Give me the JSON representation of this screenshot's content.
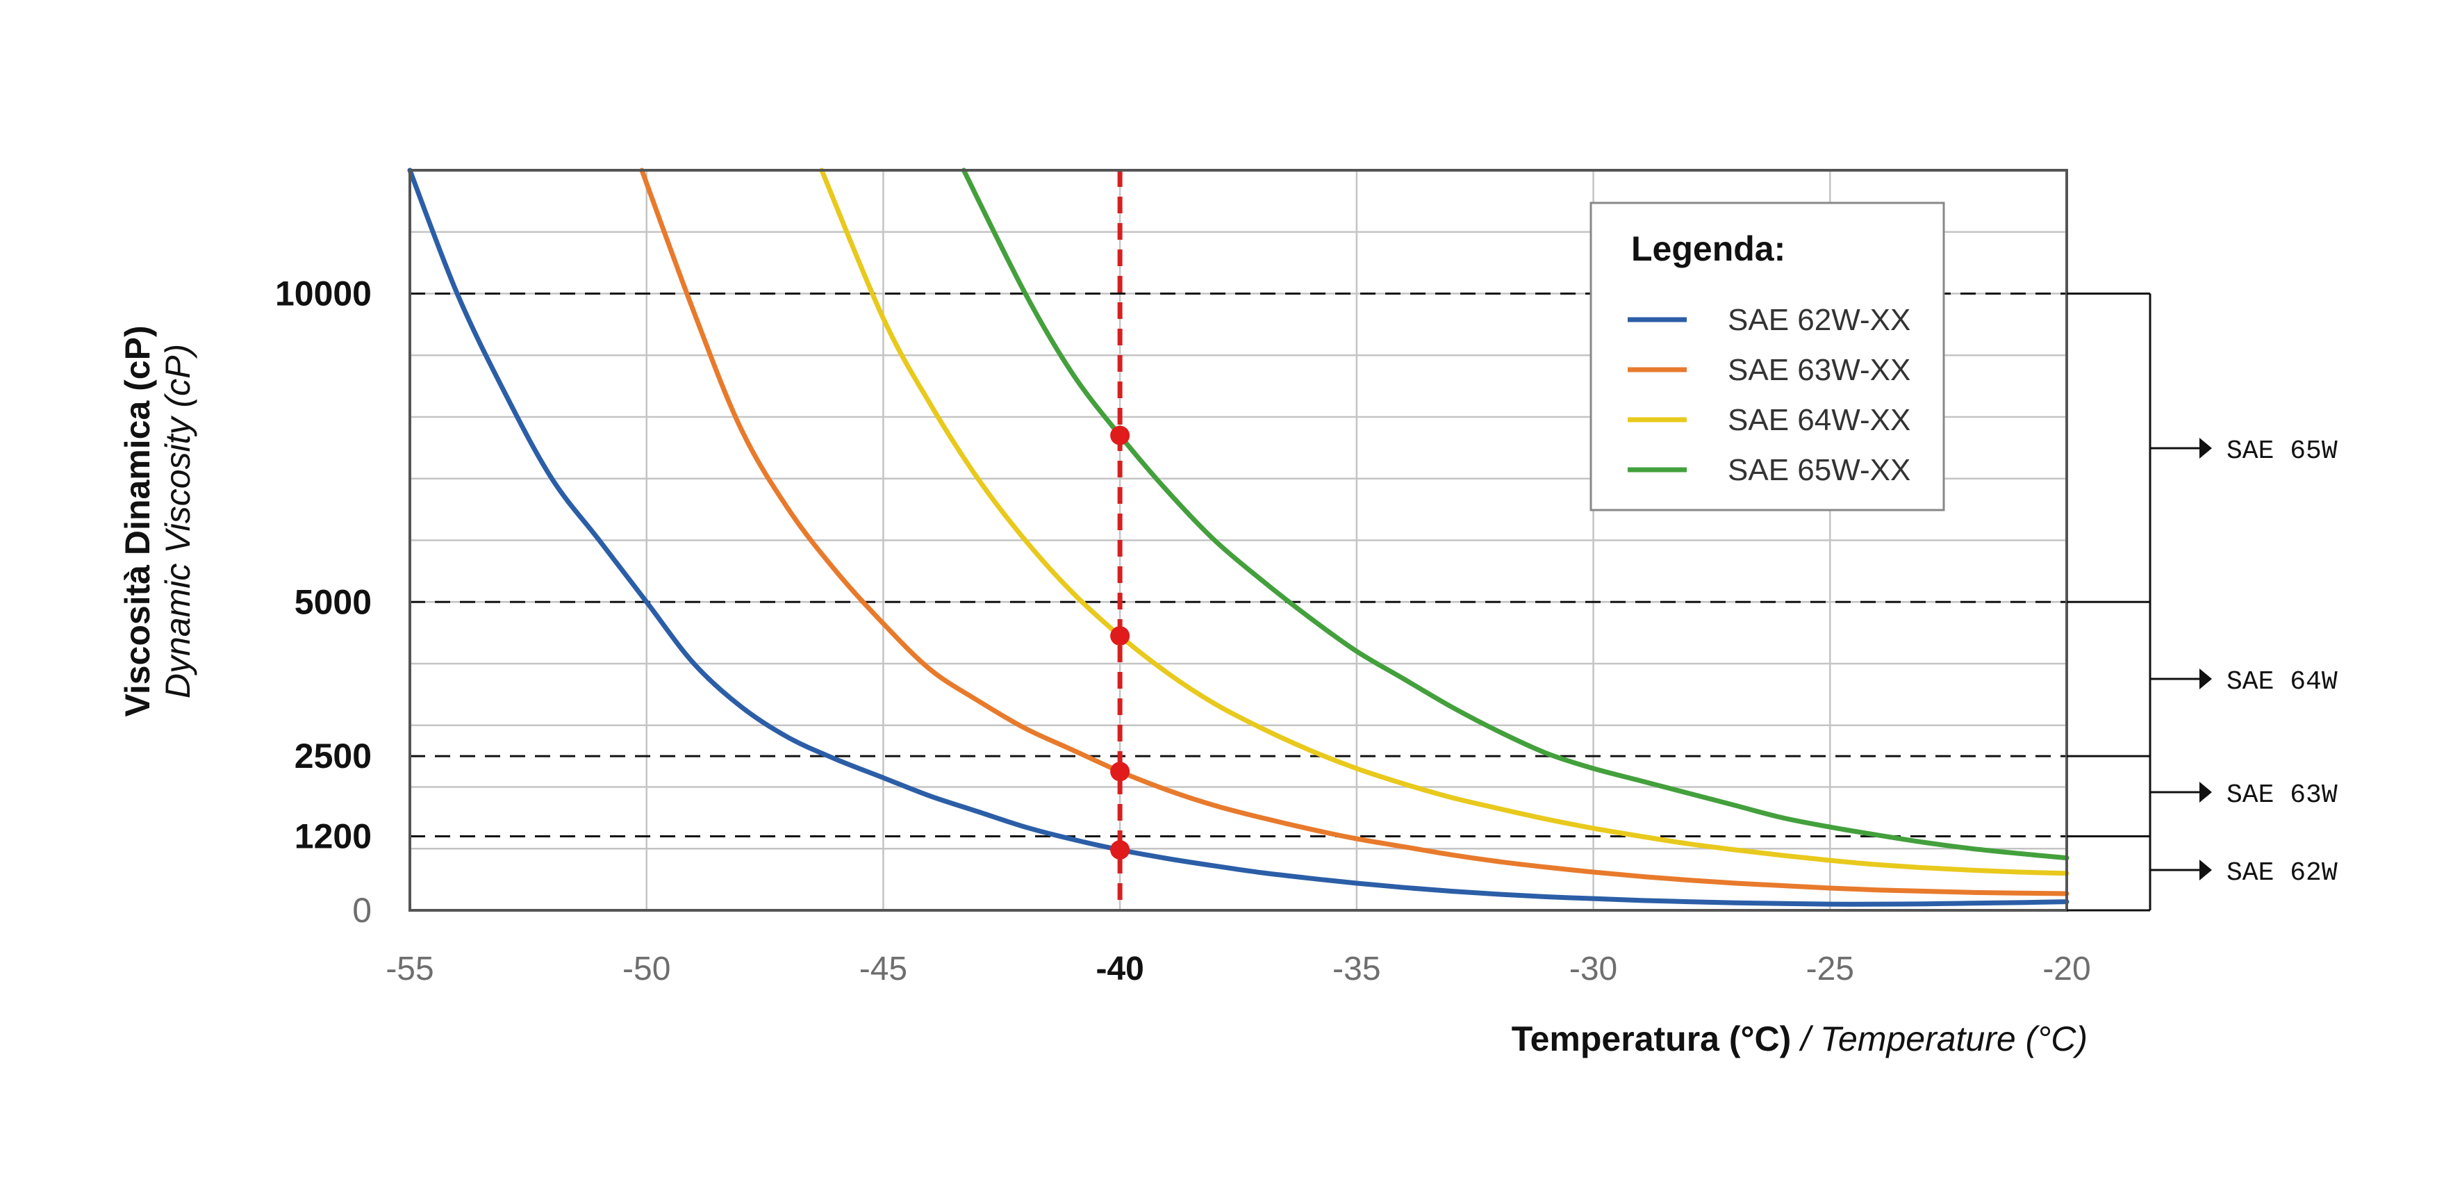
{
  "chart_data": {
    "type": "line",
    "xlabel": "Temperatura (°C)",
    "xlabel_en": "/ Temperature (°C)",
    "ylabel": "Viscosità Dinamica (cP)",
    "ylabel_en": "Dynamic Viscosity (cP)",
    "xlim": [
      -55,
      -20
    ],
    "x_ticks": [
      "-55",
      "-50",
      "-45",
      "-40",
      "-35",
      "-30",
      "-25",
      "-20"
    ],
    "x_ticks_values": [
      -55,
      -50,
      -45,
      -40,
      -35,
      -30,
      -25,
      -20
    ],
    "x_tick_bold": "-40",
    "y_ticks": [
      {
        "label": "10000",
        "value": 10000
      },
      {
        "label": "5000",
        "value": 5000
      },
      {
        "label": "2500",
        "value": 2500
      },
      {
        "label": "1200",
        "value": 1200
      },
      {
        "label": "0",
        "value": 0
      }
    ],
    "ylim": [
      0,
      12000
    ],
    "grid": true,
    "legend_title": "Legenda:",
    "legend_position": "top-right",
    "reference_line_x": -40,
    "reference_line_color": "#d62020",
    "series": [
      {
        "name": "SAE 62W-XX",
        "color": "#2b5ea7",
        "x": [
          -55,
          -54,
          -53,
          -52,
          -51,
          -50,
          -49,
          -48,
          -47,
          -46,
          -45,
          -44,
          -43,
          -42,
          -41,
          -40,
          -39,
          -38,
          -37,
          -36,
          -35,
          -34,
          -33,
          -32,
          -31,
          -30,
          -29,
          -28,
          -27,
          -26,
          -25,
          -24,
          -23,
          -22,
          -21,
          -20
        ],
        "y": [
          12000,
          10000,
          8400,
          7000,
          6000,
          5000,
          4000,
          3300,
          2800,
          2450,
          2150,
          1850,
          1600,
          1350,
          1150,
          980,
          840,
          720,
          610,
          520,
          440,
          370,
          310,
          260,
          220,
          190,
          160,
          140,
          120,
          110,
          100,
          100,
          105,
          115,
          125,
          140
        ]
      },
      {
        "name": "SAE 63W-XX",
        "color": "#e87a2c",
        "x": [
          -50.1,
          -49,
          -48,
          -47,
          -46,
          -45,
          -44,
          -43,
          -42,
          -41,
          -40,
          -39,
          -38,
          -37,
          -36,
          -35,
          -34,
          -33,
          -32,
          -31,
          -30,
          -29,
          -28,
          -27,
          -26,
          -25,
          -24,
          -23,
          -22,
          -21,
          -20
        ],
        "y": [
          12000,
          9700,
          7800,
          6500,
          5500,
          4650,
          3900,
          3400,
          2950,
          2600,
          2250,
          1950,
          1700,
          1500,
          1320,
          1160,
          1030,
          900,
          790,
          700,
          620,
          550,
          490,
          440,
          400,
          360,
          330,
          310,
          290,
          280,
          270
        ]
      },
      {
        "name": "SAE 64W-XX",
        "color": "#e8c91c",
        "x": [
          -46.3,
          -45,
          -44,
          -43,
          -42,
          -41,
          -40,
          -39,
          -38,
          -37,
          -36,
          -35,
          -34,
          -33,
          -32,
          -31,
          -30,
          -29,
          -28,
          -27,
          -26,
          -25,
          -24,
          -23,
          -22,
          -21,
          -20
        ],
        "y": [
          12000,
          9600,
          8200,
          7000,
          6000,
          5150,
          4450,
          3850,
          3350,
          2950,
          2600,
          2300,
          2050,
          1830,
          1650,
          1480,
          1330,
          1200,
          1080,
          980,
          890,
          810,
          740,
          690,
          650,
          620,
          600
        ]
      },
      {
        "name": "SAE 65W-XX",
        "color": "#43a03c",
        "x": [
          -43.3,
          -42,
          -41,
          -40,
          -39,
          -38,
          -37,
          -36,
          -35,
          -34,
          -33,
          -32,
          -31,
          -30,
          -29,
          -28,
          -27,
          -26,
          -25,
          -24,
          -23,
          -22,
          -21,
          -20
        ],
        "y": [
          12000,
          10000,
          8700,
          7700,
          6800,
          6000,
          5350,
          4750,
          4200,
          3750,
          3300,
          2900,
          2550,
          2300,
          2100,
          1900,
          1700,
          1500,
          1350,
          1220,
          1100,
          1000,
          920,
          850
        ]
      }
    ],
    "points_at_reference": [
      {
        "series": "SAE 65W-XX",
        "x": -40,
        "y": 7700
      },
      {
        "series": "SAE 64W-XX",
        "x": -40,
        "y": 4450
      },
      {
        "series": "SAE 63W-XX",
        "x": -40,
        "y": 2250
      },
      {
        "series": "SAE 62W-XX",
        "x": -40,
        "y": 980
      }
    ],
    "threshold_lines": [
      10000,
      5000,
      2500,
      1200
    ],
    "classes": [
      {
        "label": "SAE 65W",
        "range": [
          5000,
          10000
        ]
      },
      {
        "label": "SAE 64W",
        "range": [
          2500,
          5000
        ]
      },
      {
        "label": "SAE 63W",
        "range": [
          1200,
          2500
        ]
      },
      {
        "label": "SAE 62W",
        "range": [
          0,
          1200
        ]
      }
    ]
  }
}
